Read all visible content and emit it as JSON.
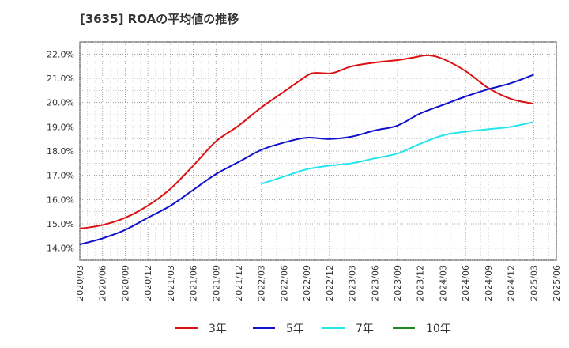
{
  "chart_data": {
    "type": "line",
    "title": "[3635]  ROAの平均値の推移",
    "xlabel": "",
    "ylabel": "",
    "ylim": [
      13.5,
      22.5
    ],
    "yticks": [
      "14.0%",
      "15.0%",
      "16.0%",
      "17.0%",
      "18.0%",
      "19.0%",
      "20.0%",
      "21.0%",
      "22.0%"
    ],
    "ytick_values": [
      14,
      15,
      16,
      17,
      18,
      19,
      20,
      21,
      22
    ],
    "xticks": [
      "2020/03",
      "2020/06",
      "2020/09",
      "2020/12",
      "2021/03",
      "2021/06",
      "2021/09",
      "2021/12",
      "2022/03",
      "2022/06",
      "2022/09",
      "2022/12",
      "2023/03",
      "2023/06",
      "2023/09",
      "2023/12",
      "2024/03",
      "2024/06",
      "2024/09",
      "2024/12",
      "2025/03",
      "2025/06"
    ],
    "grid": true,
    "legend_position": "bottom",
    "series": [
      {
        "name": "3年",
        "color": "#dd1111",
        "x": [
          "2020/03",
          "2020/06",
          "2020/09",
          "2020/12",
          "2021/03",
          "2021/06",
          "2021/09",
          "2021/12",
          "2022/03",
          "2022/06",
          "2022/09",
          "2022/10",
          "2022/12",
          "2023/01",
          "2023/03",
          "2023/06",
          "2023/09",
          "2023/11",
          "2024/01",
          "2024/03",
          "2024/06",
          "2024/09",
          "2024/12",
          "2025/03"
        ],
        "values": [
          14.8,
          14.95,
          15.25,
          15.75,
          16.45,
          17.4,
          18.4,
          19.05,
          19.8,
          20.45,
          21.1,
          21.22,
          21.2,
          21.27,
          21.5,
          21.65,
          21.75,
          21.85,
          21.95,
          21.8,
          21.3,
          20.6,
          20.15,
          19.95
        ]
      },
      {
        "name": "5年",
        "color": "#1111cc",
        "x": [
          "2020/03",
          "2020/06",
          "2020/09",
          "2020/12",
          "2021/03",
          "2021/06",
          "2021/09",
          "2021/12",
          "2022/03",
          "2022/06",
          "2022/09",
          "2022/12",
          "2023/03",
          "2023/06",
          "2023/09",
          "2023/12",
          "2024/03",
          "2024/06",
          "2024/09",
          "2024/12",
          "2025/03"
        ],
        "values": [
          14.15,
          14.4,
          14.75,
          15.25,
          15.75,
          16.4,
          17.05,
          17.55,
          18.05,
          18.35,
          18.55,
          18.5,
          18.6,
          18.85,
          19.05,
          19.55,
          19.9,
          20.25,
          20.55,
          20.8,
          21.15
        ]
      },
      {
        "name": "7年",
        "color": "#22e5ee",
        "x": [
          "2022/03",
          "2022/06",
          "2022/09",
          "2022/12",
          "2023/03",
          "2023/06",
          "2023/09",
          "2023/12",
          "2024/03",
          "2024/06",
          "2024/09",
          "2024/12",
          "2025/03"
        ],
        "values": [
          16.65,
          16.95,
          17.25,
          17.4,
          17.5,
          17.7,
          17.9,
          18.3,
          18.65,
          18.8,
          18.9,
          19.0,
          19.2
        ]
      },
      {
        "name": "10年",
        "color": "#228822",
        "x": [],
        "values": []
      }
    ]
  }
}
